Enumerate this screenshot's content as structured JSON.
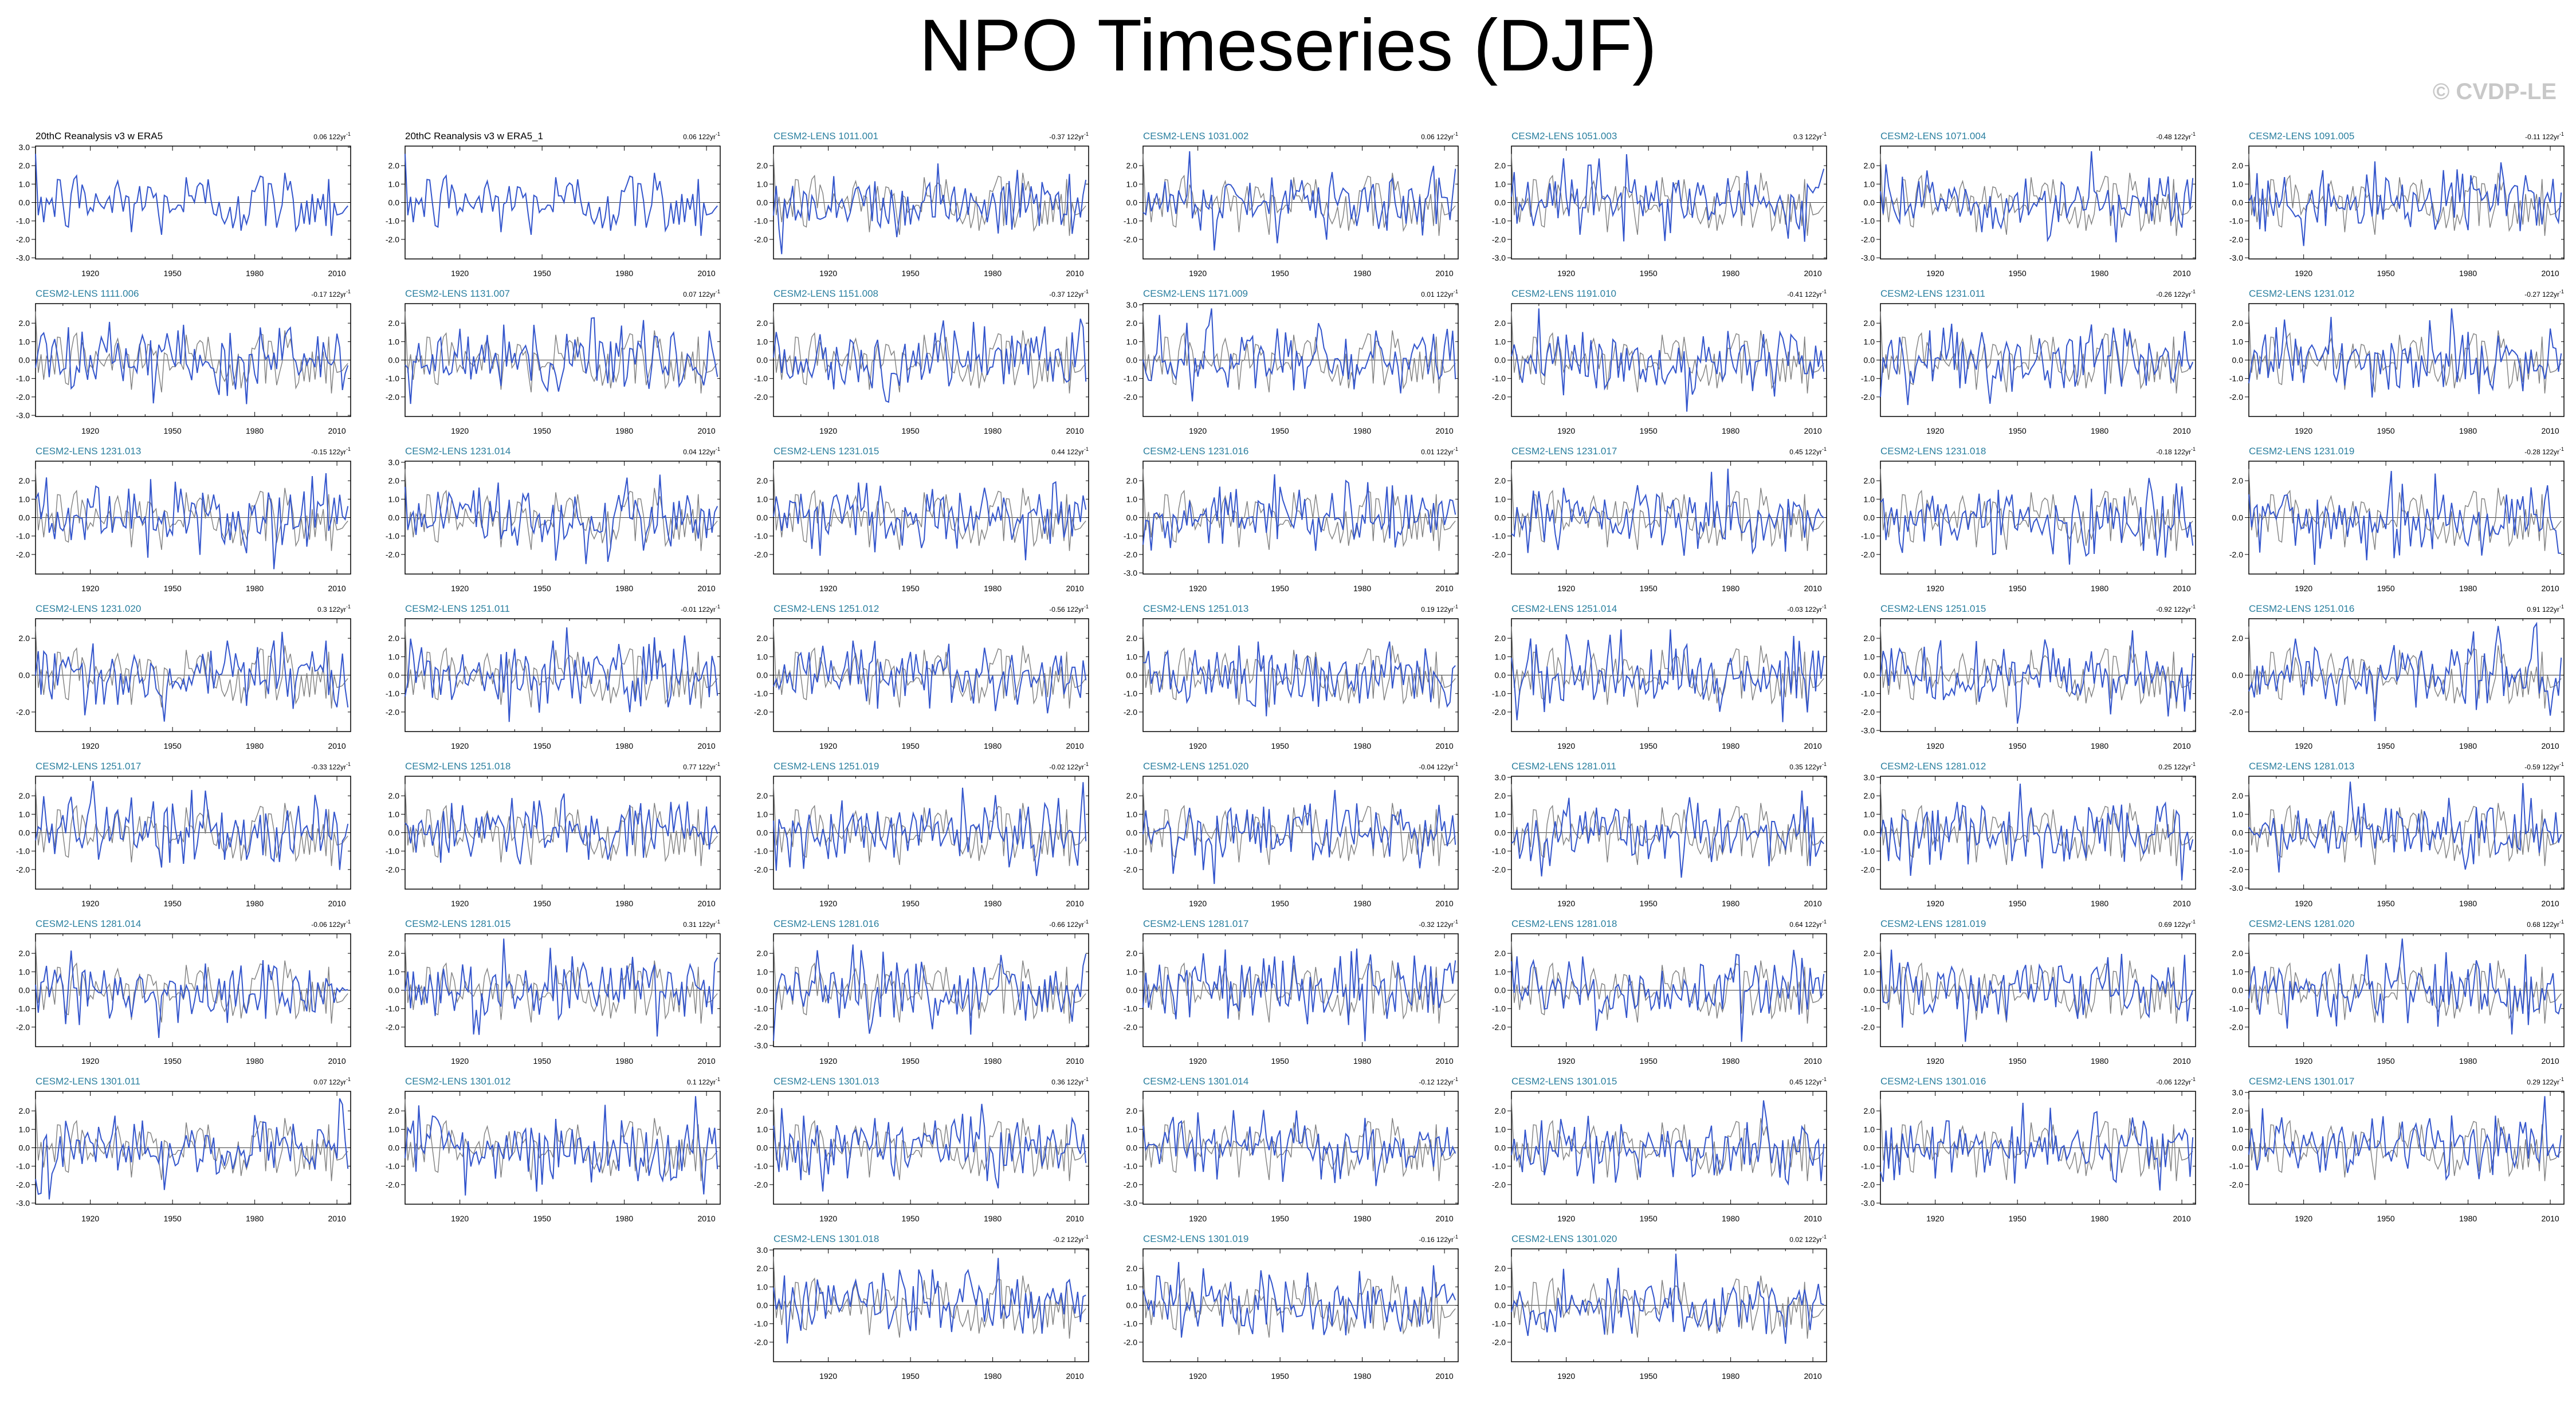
{
  "title": "NPO Timeseries (DJF)",
  "watermark": "© CVDP-LE",
  "colors": {
    "model": "#3355cc",
    "obs": "#7f7f7f",
    "label_obs": "#000000",
    "label_model": "#2a7f9f"
  },
  "x_ticks": [
    1920,
    1950,
    1980,
    2010
  ],
  "xlim": [
    1900,
    2015
  ],
  "chart_data": [
    {
      "type": "line",
      "title": "20thC Reanalysis v3 w ERA5",
      "trend": "0.06 122yr",
      "ylim": [
        -3,
        3
      ],
      "yticks": [
        "3.0",
        "2.0",
        "1.0",
        "0.0",
        "-1.0",
        "-2.0",
        "-3.0"
      ],
      "series": []
    },
    {
      "type": "line",
      "title": "20thC Reanalysis v3 w ERA5_1",
      "trend": "0.06 122yr",
      "ylim": [
        -3,
        3
      ],
      "yticks": [
        "2.0",
        "1.0",
        "0.0",
        "-1.0",
        "-2.0"
      ],
      "series": []
    },
    {
      "type": "line",
      "title": "CESM2-LENS 1011.001",
      "trend": "-0.37 122yr",
      "ylim": [
        -3,
        3
      ],
      "yticks": [
        "2.0",
        "1.0",
        "0.0",
        "-1.0",
        "-2.0"
      ],
      "series": []
    },
    {
      "type": "line",
      "title": "CESM2-LENS 1031.002",
      "trend": "0.06 122yr",
      "ylim": [
        -3,
        3
      ],
      "yticks": [
        "2.0",
        "1.0",
        "0.0",
        "-1.0",
        "-2.0"
      ],
      "series": []
    },
    {
      "type": "line",
      "title": "CESM2-LENS 1051.003",
      "trend": "0.3 122yr",
      "ylim": [
        -3,
        3
      ],
      "yticks": [
        "2.0",
        "1.0",
        "0.0",
        "-1.0",
        "-2.0",
        "-3.0"
      ],
      "series": []
    },
    {
      "type": "line",
      "title": "CESM2-LENS 1071.004",
      "trend": "-0.48 122yr",
      "ylim": [
        -3,
        3
      ],
      "yticks": [
        "2.0",
        "1.0",
        "0.0",
        "-1.0",
        "-2.0",
        "-3.0"
      ],
      "series": []
    },
    {
      "type": "line",
      "title": "CESM2-LENS 1091.005",
      "trend": "-0.11 122yr",
      "ylim": [
        -3,
        3
      ],
      "yticks": [
        "2.0",
        "1.0",
        "0.0",
        "-1.0",
        "-2.0",
        "-3.0"
      ],
      "series": []
    },
    {
      "type": "line",
      "title": "CESM2-LENS 1111.006",
      "trend": "-0.17 122yr",
      "ylim": [
        -3,
        3
      ],
      "yticks": [
        "2.0",
        "1.0",
        "0.0",
        "-1.0",
        "-2.0",
        "-3.0"
      ],
      "series": []
    },
    {
      "type": "line",
      "title": "CESM2-LENS 1131.007",
      "trend": "0.07 122yr",
      "ylim": [
        -3,
        3
      ],
      "yticks": [
        "2.0",
        "1.0",
        "0.0",
        "-1.0",
        "-2.0"
      ],
      "series": []
    },
    {
      "type": "line",
      "title": "CESM2-LENS 1151.008",
      "trend": "-0.37 122yr",
      "ylim": [
        -3,
        3
      ],
      "yticks": [
        "2.0",
        "1.0",
        "0.0",
        "-1.0",
        "-2.0"
      ],
      "series": []
    },
    {
      "type": "line",
      "title": "CESM2-LENS 1171.009",
      "trend": "0.01 122yr",
      "ylim": [
        -3,
        3
      ],
      "yticks": [
        "3.0",
        "2.0",
        "1.0",
        "0.0",
        "-1.0",
        "-2.0"
      ],
      "series": []
    },
    {
      "type": "line",
      "title": "CESM2-LENS 1191.010",
      "trend": "-0.41 122yr",
      "ylim": [
        -3,
        3
      ],
      "yticks": [
        "2.0",
        "1.0",
        "0.0",
        "-1.0",
        "-2.0"
      ],
      "series": []
    },
    {
      "type": "line",
      "title": "CESM2-LENS 1231.011",
      "trend": "-0.26 122yr",
      "ylim": [
        -3,
        3
      ],
      "yticks": [
        "2.0",
        "1.0",
        "0.0",
        "-1.0",
        "-2.0"
      ],
      "series": []
    },
    {
      "type": "line",
      "title": "CESM2-LENS 1231.012",
      "trend": "-0.27 122yr",
      "ylim": [
        -3,
        3
      ],
      "yticks": [
        "2.0",
        "1.0",
        "0.0",
        "-1.0",
        "-2.0"
      ],
      "series": []
    },
    {
      "type": "line",
      "title": "CESM2-LENS 1231.013",
      "trend": "-0.15 122yr",
      "ylim": [
        -3,
        3
      ],
      "yticks": [
        "2.0",
        "1.0",
        "0.0",
        "-1.0",
        "-2.0"
      ],
      "series": []
    },
    {
      "type": "line",
      "title": "CESM2-LENS 1231.014",
      "trend": "0.04 122yr",
      "ylim": [
        -3,
        3
      ],
      "yticks": [
        "3.0",
        "2.0",
        "1.0",
        "0.0",
        "-1.0",
        "-2.0"
      ],
      "series": []
    },
    {
      "type": "line",
      "title": "CESM2-LENS 1231.015",
      "trend": "0.44 122yr",
      "ylim": [
        -3,
        3
      ],
      "yticks": [
        "2.0",
        "1.0",
        "0.0",
        "-1.0",
        "-2.0"
      ],
      "series": []
    },
    {
      "type": "line",
      "title": "CESM2-LENS 1231.016",
      "trend": "0.01 122yr",
      "ylim": [
        -3,
        3
      ],
      "yticks": [
        "2.0",
        "1.0",
        "0.0",
        "-1.0",
        "-2.0",
        "-3.0"
      ],
      "series": []
    },
    {
      "type": "line",
      "title": "CESM2-LENS 1231.017",
      "trend": "0.45 122yr",
      "ylim": [
        -3,
        3
      ],
      "yticks": [
        "2.0",
        "1.0",
        "0.0",
        "-1.0",
        "-2.0"
      ],
      "series": []
    },
    {
      "type": "line",
      "title": "CESM2-LENS 1231.018",
      "trend": "-0.18 122yr",
      "ylim": [
        -3,
        3
      ],
      "yticks": [
        "2.0",
        "1.0",
        "0.0",
        "-1.0",
        "-2.0"
      ],
      "series": []
    },
    {
      "type": "line",
      "title": "CESM2-LENS 1231.019",
      "trend": "-0.28 122yr",
      "ylim": [
        -3,
        3
      ],
      "yticks": [
        "2.0",
        "0.0",
        "-2.0"
      ],
      "series": []
    },
    {
      "type": "line",
      "title": "CESM2-LENS 1231.020",
      "trend": "0.3 122yr",
      "ylim": [
        -3,
        3
      ],
      "yticks": [
        "2.0",
        "0.0",
        "-2.0"
      ],
      "series": []
    },
    {
      "type": "line",
      "title": "CESM2-LENS 1251.011",
      "trend": "-0.01 122yr",
      "ylim": [
        -3,
        3
      ],
      "yticks": [
        "2.0",
        "1.0",
        "0.0",
        "-1.0",
        "-2.0"
      ],
      "series": []
    },
    {
      "type": "line",
      "title": "CESM2-LENS 1251.012",
      "trend": "-0.56 122yr",
      "ylim": [
        -3,
        3
      ],
      "yticks": [
        "2.0",
        "1.0",
        "0.0",
        "-1.0",
        "-2.0"
      ],
      "series": []
    },
    {
      "type": "line",
      "title": "CESM2-LENS 1251.013",
      "trend": "0.19 122yr",
      "ylim": [
        -3,
        3
      ],
      "yticks": [
        "2.0",
        "1.0",
        "0.0",
        "-1.0",
        "-2.0"
      ],
      "series": []
    },
    {
      "type": "line",
      "title": "CESM2-LENS 1251.014",
      "trend": "-0.03 122yr",
      "ylim": [
        -3,
        3
      ],
      "yticks": [
        "2.0",
        "1.0",
        "0.0",
        "-1.0",
        "-2.0"
      ],
      "series": []
    },
    {
      "type": "line",
      "title": "CESM2-LENS 1251.015",
      "trend": "-0.92 122yr",
      "ylim": [
        -3,
        3
      ],
      "yticks": [
        "2.0",
        "1.0",
        "0.0",
        "-1.0",
        "-2.0",
        "-3.0"
      ],
      "series": []
    },
    {
      "type": "line",
      "title": "CESM2-LENS 1251.016",
      "trend": "0.91 122yr",
      "ylim": [
        -3,
        3
      ],
      "yticks": [
        "2.0",
        "0.0",
        "-2.0"
      ],
      "series": []
    },
    {
      "type": "line",
      "title": "CESM2-LENS 1251.017",
      "trend": "-0.33 122yr",
      "ylim": [
        -3,
        3
      ],
      "yticks": [
        "2.0",
        "1.0",
        "0.0",
        "-1.0",
        "-2.0"
      ],
      "series": []
    },
    {
      "type": "line",
      "title": "CESM2-LENS 1251.018",
      "trend": "0.77 122yr",
      "ylim": [
        -3,
        3
      ],
      "yticks": [
        "2.0",
        "1.0",
        "0.0",
        "-1.0",
        "-2.0"
      ],
      "series": []
    },
    {
      "type": "line",
      "title": "CESM2-LENS 1251.019",
      "trend": "-0.02 122yr",
      "ylim": [
        -3,
        3
      ],
      "yticks": [
        "2.0",
        "1.0",
        "0.0",
        "-1.0",
        "-2.0"
      ],
      "series": []
    },
    {
      "type": "line",
      "title": "CESM2-LENS 1251.020",
      "trend": "-0.04 122yr",
      "ylim": [
        -3,
        3
      ],
      "yticks": [
        "2.0",
        "1.0",
        "0.0",
        "-1.0",
        "-2.0"
      ],
      "series": []
    },
    {
      "type": "line",
      "title": "CESM2-LENS 1281.011",
      "trend": "0.35 122yr",
      "ylim": [
        -3,
        3
      ],
      "yticks": [
        "3.0",
        "2.0",
        "1.0",
        "0.0",
        "-1.0",
        "-2.0"
      ],
      "series": []
    },
    {
      "type": "line",
      "title": "CESM2-LENS 1281.012",
      "trend": "0.25 122yr",
      "ylim": [
        -3,
        3
      ],
      "yticks": [
        "3.0",
        "2.0",
        "1.0",
        "0.0",
        "-1.0",
        "-2.0"
      ],
      "series": []
    },
    {
      "type": "line",
      "title": "CESM2-LENS 1281.013",
      "trend": "-0.59 122yr",
      "ylim": [
        -3,
        3
      ],
      "yticks": [
        "2.0",
        "1.0",
        "0.0",
        "-1.0",
        "-2.0",
        "-3.0"
      ],
      "series": []
    },
    {
      "type": "line",
      "title": "CESM2-LENS 1281.014",
      "trend": "-0.06 122yr",
      "ylim": [
        -3,
        3
      ],
      "yticks": [
        "2.0",
        "1.0",
        "0.0",
        "-1.0",
        "-2.0"
      ],
      "series": []
    },
    {
      "type": "line",
      "title": "CESM2-LENS 1281.015",
      "trend": "0.31 122yr",
      "ylim": [
        -3,
        3
      ],
      "yticks": [
        "2.0",
        "1.0",
        "0.0",
        "-1.0",
        "-2.0"
      ],
      "series": []
    },
    {
      "type": "line",
      "title": "CESM2-LENS 1281.016",
      "trend": "-0.66 122yr",
      "ylim": [
        -3,
        3
      ],
      "yticks": [
        "2.0",
        "1.0",
        "0.0",
        "-1.0",
        "-2.0",
        "-3.0"
      ],
      "series": []
    },
    {
      "type": "line",
      "title": "CESM2-LENS 1281.017",
      "trend": "-0.32 122yr",
      "ylim": [
        -3,
        3
      ],
      "yticks": [
        "2.0",
        "1.0",
        "0.0",
        "-1.0",
        "-2.0"
      ],
      "series": []
    },
    {
      "type": "line",
      "title": "CESM2-LENS 1281.018",
      "trend": "0.64 122yr",
      "ylim": [
        -3,
        3
      ],
      "yticks": [
        "2.0",
        "1.0",
        "0.0",
        "-1.0",
        "-2.0"
      ],
      "series": []
    },
    {
      "type": "line",
      "title": "CESM2-LENS 1281.019",
      "trend": "0.69 122yr",
      "ylim": [
        -3,
        3
      ],
      "yticks": [
        "2.0",
        "1.0",
        "0.0",
        "-1.0",
        "-2.0"
      ],
      "series": []
    },
    {
      "type": "line",
      "title": "CESM2-LENS 1281.020",
      "trend": "0.68 122yr",
      "ylim": [
        -3,
        3
      ],
      "yticks": [
        "2.0",
        "1.0",
        "0.0",
        "-1.0",
        "-2.0"
      ],
      "series": []
    },
    {
      "type": "line",
      "title": "CESM2-LENS 1301.011",
      "trend": "0.07 122yr",
      "ylim": [
        -3,
        3
      ],
      "yticks": [
        "2.0",
        "1.0",
        "0.0",
        "-1.0",
        "-2.0",
        "-3.0"
      ],
      "series": []
    },
    {
      "type": "line",
      "title": "CESM2-LENS 1301.012",
      "trend": "0.1 122yr",
      "ylim": [
        -3,
        3
      ],
      "yticks": [
        "2.0",
        "1.0",
        "0.0",
        "-1.0",
        "-2.0"
      ],
      "series": []
    },
    {
      "type": "line",
      "title": "CESM2-LENS 1301.013",
      "trend": "0.36 122yr",
      "ylim": [
        -3,
        3
      ],
      "yticks": [
        "2.0",
        "1.0",
        "0.0",
        "-1.0",
        "-2.0"
      ],
      "series": []
    },
    {
      "type": "line",
      "title": "CESM2-LENS 1301.014",
      "trend": "-0.12 122yr",
      "ylim": [
        -3,
        3
      ],
      "yticks": [
        "2.0",
        "1.0",
        "0.0",
        "-1.0",
        "-2.0",
        "-3.0"
      ],
      "series": []
    },
    {
      "type": "line",
      "title": "CESM2-LENS 1301.015",
      "trend": "0.45 122yr",
      "ylim": [
        -3,
        3
      ],
      "yticks": [
        "2.0",
        "1.0",
        "0.0",
        "-1.0",
        "-2.0"
      ],
      "series": []
    },
    {
      "type": "line",
      "title": "CESM2-LENS 1301.016",
      "trend": "-0.06 122yr",
      "ylim": [
        -3,
        3
      ],
      "yticks": [
        "2.0",
        "1.0",
        "0.0",
        "-1.0",
        "-2.0",
        "-3.0"
      ],
      "series": []
    },
    {
      "type": "line",
      "title": "CESM2-LENS 1301.017",
      "trend": "0.29 122yr",
      "ylim": [
        -3,
        3
      ],
      "yticks": [
        "3.0",
        "2.0",
        "1.0",
        "0.0",
        "-1.0",
        "-2.0"
      ],
      "series": []
    },
    {
      "type": "line",
      "title": "CESM2-LENS 1301.018",
      "trend": "-0.2 122yr",
      "ylim": [
        -3,
        3
      ],
      "yticks": [
        "3.0",
        "2.0",
        "1.0",
        "0.0",
        "-1.0",
        "-2.0"
      ],
      "series": []
    },
    {
      "type": "line",
      "title": "CESM2-LENS 1301.019",
      "trend": "-0.16 122yr",
      "ylim": [
        -3,
        3
      ],
      "yticks": [
        "2.0",
        "1.0",
        "0.0",
        "-1.0",
        "-2.0"
      ],
      "series": []
    },
    {
      "type": "line",
      "title": "CESM2-LENS 1301.020",
      "trend": "0.02 122yr",
      "ylim": [
        -3,
        3
      ],
      "yticks": [
        "2.0",
        "1.0",
        "0.0",
        "-1.0",
        "-2.0"
      ],
      "series": []
    }
  ]
}
